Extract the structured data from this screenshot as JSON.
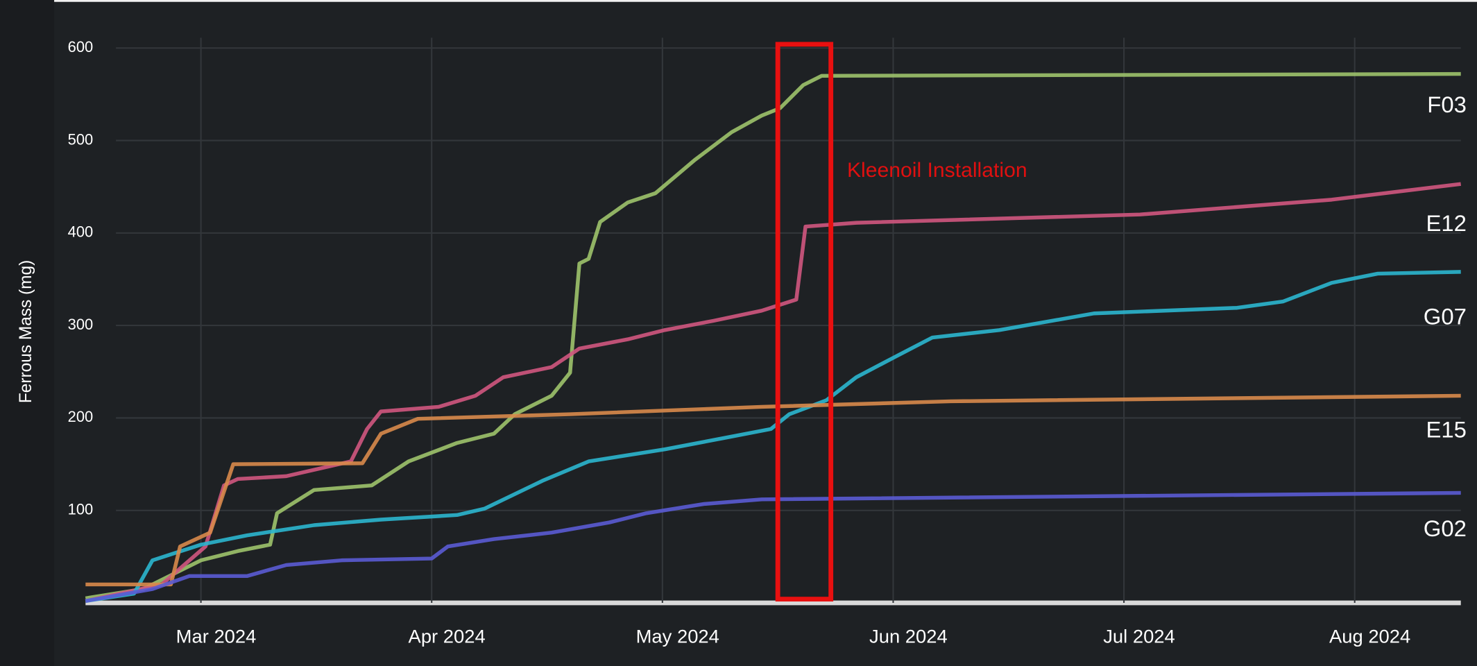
{
  "chart_data": {
    "type": "line",
    "y_label": "Ferrous Mass (mg)",
    "annotation": "Kleenoil Installation",
    "highlight": [
      5.5,
      5.73
    ],
    "xlim": [
      2.5,
      8.46
    ],
    "xticks": [
      {
        "value": 3,
        "label": "Mar 2024"
      },
      {
        "value": 4,
        "label": "Apr 2024"
      },
      {
        "value": 5,
        "label": "May 2024"
      },
      {
        "value": 6,
        "label": "Jun 2024"
      },
      {
        "value": 7,
        "label": "Jul 2024"
      },
      {
        "value": 8,
        "label": "Aug 2024"
      }
    ],
    "ylim": [
      0,
      600
    ],
    "yticks": [
      100,
      200,
      300,
      400,
      500,
      600
    ],
    "grid": true,
    "series": [
      {
        "name": "F03",
        "color": "#9dc36b",
        "x": [
          2.5,
          2.75,
          3.0,
          3.16,
          3.3,
          3.33,
          3.49,
          3.74,
          3.9,
          4.11,
          4.27,
          4.36,
          4.52,
          4.6,
          4.64,
          4.68,
          4.73,
          4.85,
          4.97,
          5.14,
          5.3,
          5.43,
          5.51,
          5.61,
          5.69,
          8.46
        ],
        "values": [
          5,
          15,
          46,
          56,
          63,
          97,
          122,
          127,
          153,
          173,
          183,
          204,
          224,
          249,
          367,
          372,
          412,
          433,
          443,
          479,
          509,
          527,
          535,
          560,
          570,
          572
        ]
      },
      {
        "name": "E12",
        "color": "#d0577f",
        "x": [
          2.5,
          2.83,
          3.02,
          3.1,
          3.16,
          3.37,
          3.65,
          3.72,
          3.78,
          4.03,
          4.19,
          4.31,
          4.52,
          4.64,
          4.85,
          5.01,
          5.22,
          5.43,
          5.58,
          5.62,
          5.84,
          7.07,
          7.9,
          8.46
        ],
        "values": [
          2,
          20,
          61,
          127,
          134,
          137,
          153,
          188,
          207,
          212,
          224,
          244,
          255,
          275,
          285,
          295,
          305,
          316,
          328,
          407,
          411,
          420,
          436,
          453
        ]
      },
      {
        "name": "G07",
        "color": "#2bb6cf",
        "x": [
          2.5,
          2.71,
          2.79,
          3.0,
          3.2,
          3.49,
          3.78,
          4.11,
          4.23,
          4.48,
          4.68,
          5.01,
          5.26,
          5.47,
          5.55,
          5.71,
          5.84,
          6.0,
          6.17,
          6.46,
          6.87,
          7.49,
          7.69,
          7.9,
          8.1,
          8.46
        ],
        "values": [
          2,
          10,
          46,
          63,
          73,
          84,
          90,
          95,
          102,
          132,
          153,
          166,
          178,
          188,
          204,
          219,
          244,
          265,
          287,
          295,
          313,
          319,
          326,
          346,
          356,
          358
        ]
      },
      {
        "name": "E15",
        "color": "#d88a4b",
        "x": [
          2.5,
          2.87,
          2.91,
          3.04,
          3.14,
          3.7,
          3.78,
          3.94,
          4.6,
          5.43,
          6.25,
          8.46
        ],
        "values": [
          20,
          20,
          61,
          76,
          150,
          151,
          183,
          199,
          204,
          212,
          218,
          224
        ]
      },
      {
        "name": "G02",
        "color": "#5a5bd4",
        "x": [
          2.5,
          2.79,
          2.95,
          3.2,
          3.37,
          3.61,
          4.0,
          4.07,
          4.27,
          4.52,
          4.77,
          4.93,
          5.18,
          5.43,
          8.46
        ],
        "values": [
          2,
          15,
          29,
          29,
          41,
          46,
          48,
          61,
          69,
          76,
          87,
          97,
          107,
          112,
          119
        ]
      }
    ]
  }
}
